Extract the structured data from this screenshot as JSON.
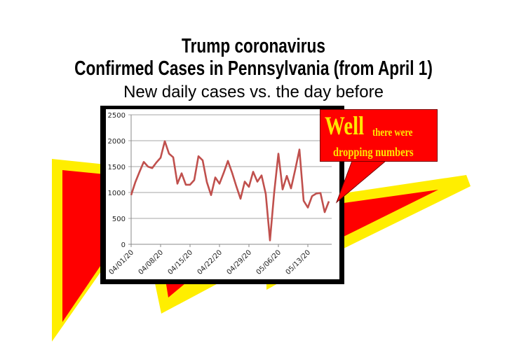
{
  "header": {
    "title_line1": "Trump coronavirus",
    "title_line2": "Confirmed Cases in Pennsylvania (from April 1)",
    "subtitle": "New daily cases vs. the day before"
  },
  "callout": {
    "word_big": "Well",
    "word_small": "there were",
    "line2": "dropping numbers",
    "bg_color": "#ff0000",
    "text_color": "#ffe600"
  },
  "colors": {
    "line": "#c0504d",
    "background_yellow": "#ffee00",
    "background_red": "#ff0000",
    "frame": "#000000"
  },
  "chart_data": {
    "type": "line",
    "title": "Trump coronavirus Confirmed Cases in Pennsylvania (from April 1)",
    "subtitle": "New daily cases vs. the day before",
    "xlabel": "",
    "ylabel": "",
    "ylim": [
      0,
      2500
    ],
    "yticks": [
      "0",
      "500",
      "1000",
      "1500",
      "2000",
      "2500"
    ],
    "xtick_labels": [
      "04/01/20",
      "04/08/20",
      "04/15/20",
      "04/22/20",
      "04/29/20",
      "05/06/20",
      "05/13/20"
    ],
    "grid": true,
    "legend": "none",
    "x": [
      "04/01/20",
      "04/02/20",
      "04/03/20",
      "04/04/20",
      "04/05/20",
      "04/06/20",
      "04/07/20",
      "04/08/20",
      "04/09/20",
      "04/10/20",
      "04/11/20",
      "04/12/20",
      "04/13/20",
      "04/14/20",
      "04/15/20",
      "04/16/20",
      "04/17/20",
      "04/18/20",
      "04/19/20",
      "04/20/20",
      "04/21/20",
      "04/22/20",
      "04/23/20",
      "04/24/20",
      "04/25/20",
      "04/26/20",
      "04/27/20",
      "04/28/20",
      "04/29/20",
      "04/30/20",
      "05/01/20",
      "05/02/20",
      "05/03/20",
      "05/04/20",
      "05/05/20",
      "05/06/20",
      "05/07/20",
      "05/08/20",
      "05/09/20",
      "05/10/20",
      "05/11/20",
      "05/12/20",
      "05/13/20",
      "05/14/20",
      "05/15/20",
      "05/16/20",
      "05/17/20",
      "05/18/20"
    ],
    "series": [
      {
        "name": "New daily cases",
        "values": [
          950,
          1200,
          1400,
          1590,
          1500,
          1470,
          1580,
          1670,
          1990,
          1750,
          1680,
          1170,
          1370,
          1150,
          1150,
          1240,
          1700,
          1620,
          1200,
          950,
          1290,
          1170,
          1380,
          1610,
          1380,
          1120,
          880,
          1210,
          1110,
          1400,
          1210,
          1330,
          970,
          75,
          1000,
          1750,
          1060,
          1320,
          1080,
          1440,
          1830,
          840,
          710,
          930,
          980,
          990,
          620,
          830
        ]
      }
    ]
  }
}
